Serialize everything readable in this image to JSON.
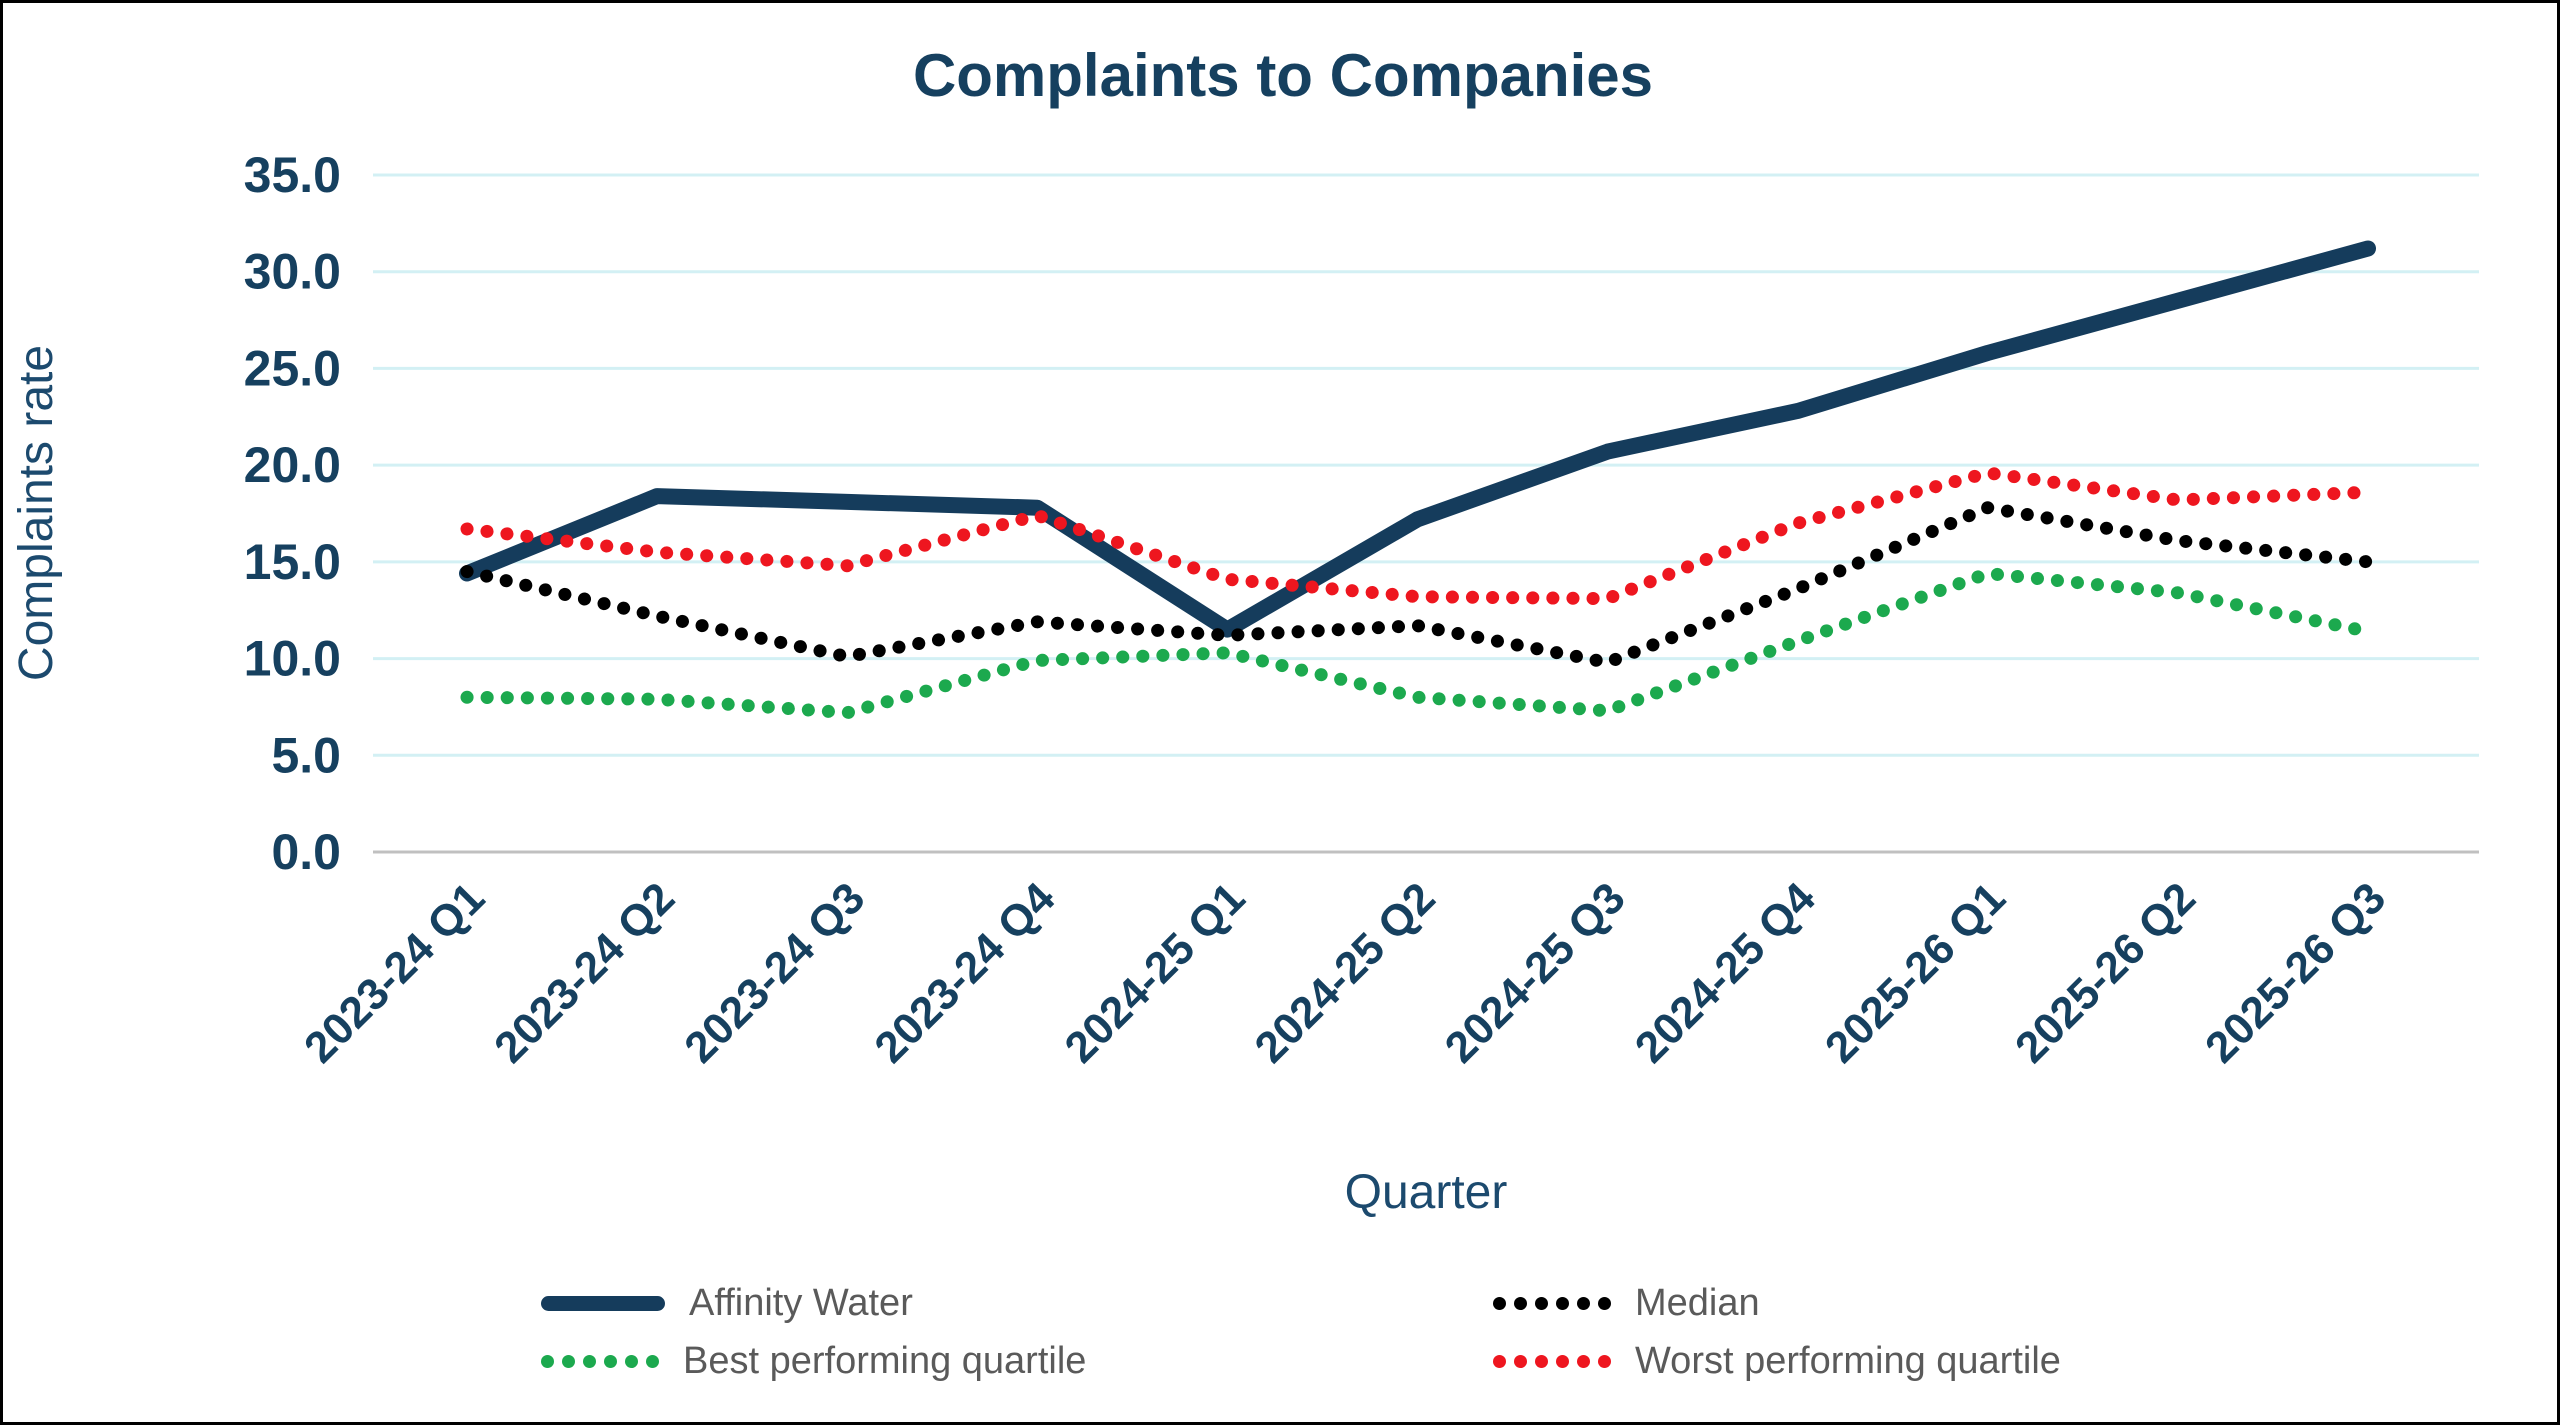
{
  "chart_data": {
    "type": "line",
    "title": "Complaints to Companies",
    "xlabel": "Quarter",
    "ylabel": "Complaints rate",
    "categories": [
      "2023-24 Q1",
      "2023-24 Q2",
      "2023-24 Q3",
      "2023-24 Q4",
      "2024-25 Q1",
      "2024-25 Q2",
      "2024-25 Q3",
      "2024-25 Q4",
      "2025-26 Q1",
      "2025-26 Q2",
      "2025-26 Q3"
    ],
    "series": [
      {
        "name": "Affinity Water",
        "style": "solid",
        "color": "#153c5c",
        "values": [
          14.4,
          18.4,
          18.1,
          17.8,
          11.5,
          17.2,
          20.7,
          22.8,
          25.8,
          28.5,
          31.2
        ]
      },
      {
        "name": "Median",
        "style": "dotted",
        "color": "#000000",
        "values": [
          14.5,
          12.2,
          10.1,
          11.9,
          11.2,
          11.7,
          9.8,
          13.6,
          17.8,
          16.1,
          15.0
        ]
      },
      {
        "name": "Best performing quartile",
        "style": "dotted",
        "color": "#1ca94e",
        "values": [
          8.0,
          7.9,
          7.2,
          9.9,
          10.3,
          8.0,
          7.3,
          10.9,
          14.4,
          13.4,
          11.4
        ]
      },
      {
        "name": "Worst performing quartile",
        "style": "dotted",
        "color": "#ee161f",
        "values": [
          16.7,
          15.5,
          14.8,
          17.4,
          14.1,
          13.2,
          13.1,
          17.0,
          19.6,
          18.2,
          18.6
        ]
      }
    ],
    "ylim": [
      0,
      35
    ],
    "ytick_step": 5,
    "ytick_labels": [
      "0.0",
      "5.0",
      "10.0",
      "15.0",
      "20.0",
      "25.0",
      "30.0",
      "35.0"
    ],
    "grid": "horizontal",
    "legend_position": "bottom",
    "legend_rows": [
      [
        "Affinity Water",
        "Median"
      ],
      [
        "Best performing quartile",
        "Worst performing quartile"
      ]
    ]
  },
  "colors": {
    "background": "#ffffff",
    "border": "#000000",
    "gridline": "#d3f0f4",
    "zero_line": "#c0c0c0",
    "axis_text": "#16405f",
    "legend_text": "#5a5a5a"
  }
}
